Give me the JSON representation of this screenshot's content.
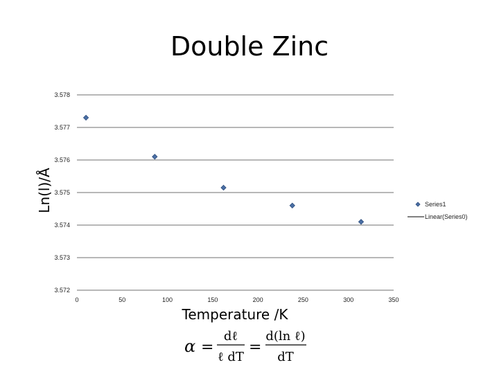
{
  "chart_data": {
    "type": "scatter",
    "title": "Double Zinc",
    "xlabel": "Temperature /K",
    "ylabel": "Ln(l)/Å",
    "xlim": [
      0,
      350
    ],
    "ylim": [
      3.572,
      3.578
    ],
    "x_ticks": [
      "0",
      "50",
      "100",
      "150",
      "200",
      "250",
      "300",
      "350"
    ],
    "y_ticks": [
      "3.572",
      "3.573",
      "3.574",
      "3.575",
      "3.576",
      "3.577",
      "3.578"
    ],
    "grid": "horizontal",
    "legend_position": "right",
    "series": [
      {
        "name": "Series1",
        "marker": "diamond",
        "color": "#4a6fa5",
        "x": [
          10,
          86,
          162,
          238,
          314
        ],
        "y": [
          3.5773,
          3.5761,
          3.57515,
          3.5746,
          3.5741
        ]
      },
      {
        "name": "Linear(Series0)",
        "marker": "line",
        "color": "#000000",
        "x": [],
        "y": []
      }
    ]
  },
  "formula": {
    "alpha": "α",
    "eq1": "=",
    "num1": "dℓ",
    "den1": "ℓ dT",
    "eq2": "=",
    "num2": "d(ln ℓ)",
    "den2": "dT"
  }
}
